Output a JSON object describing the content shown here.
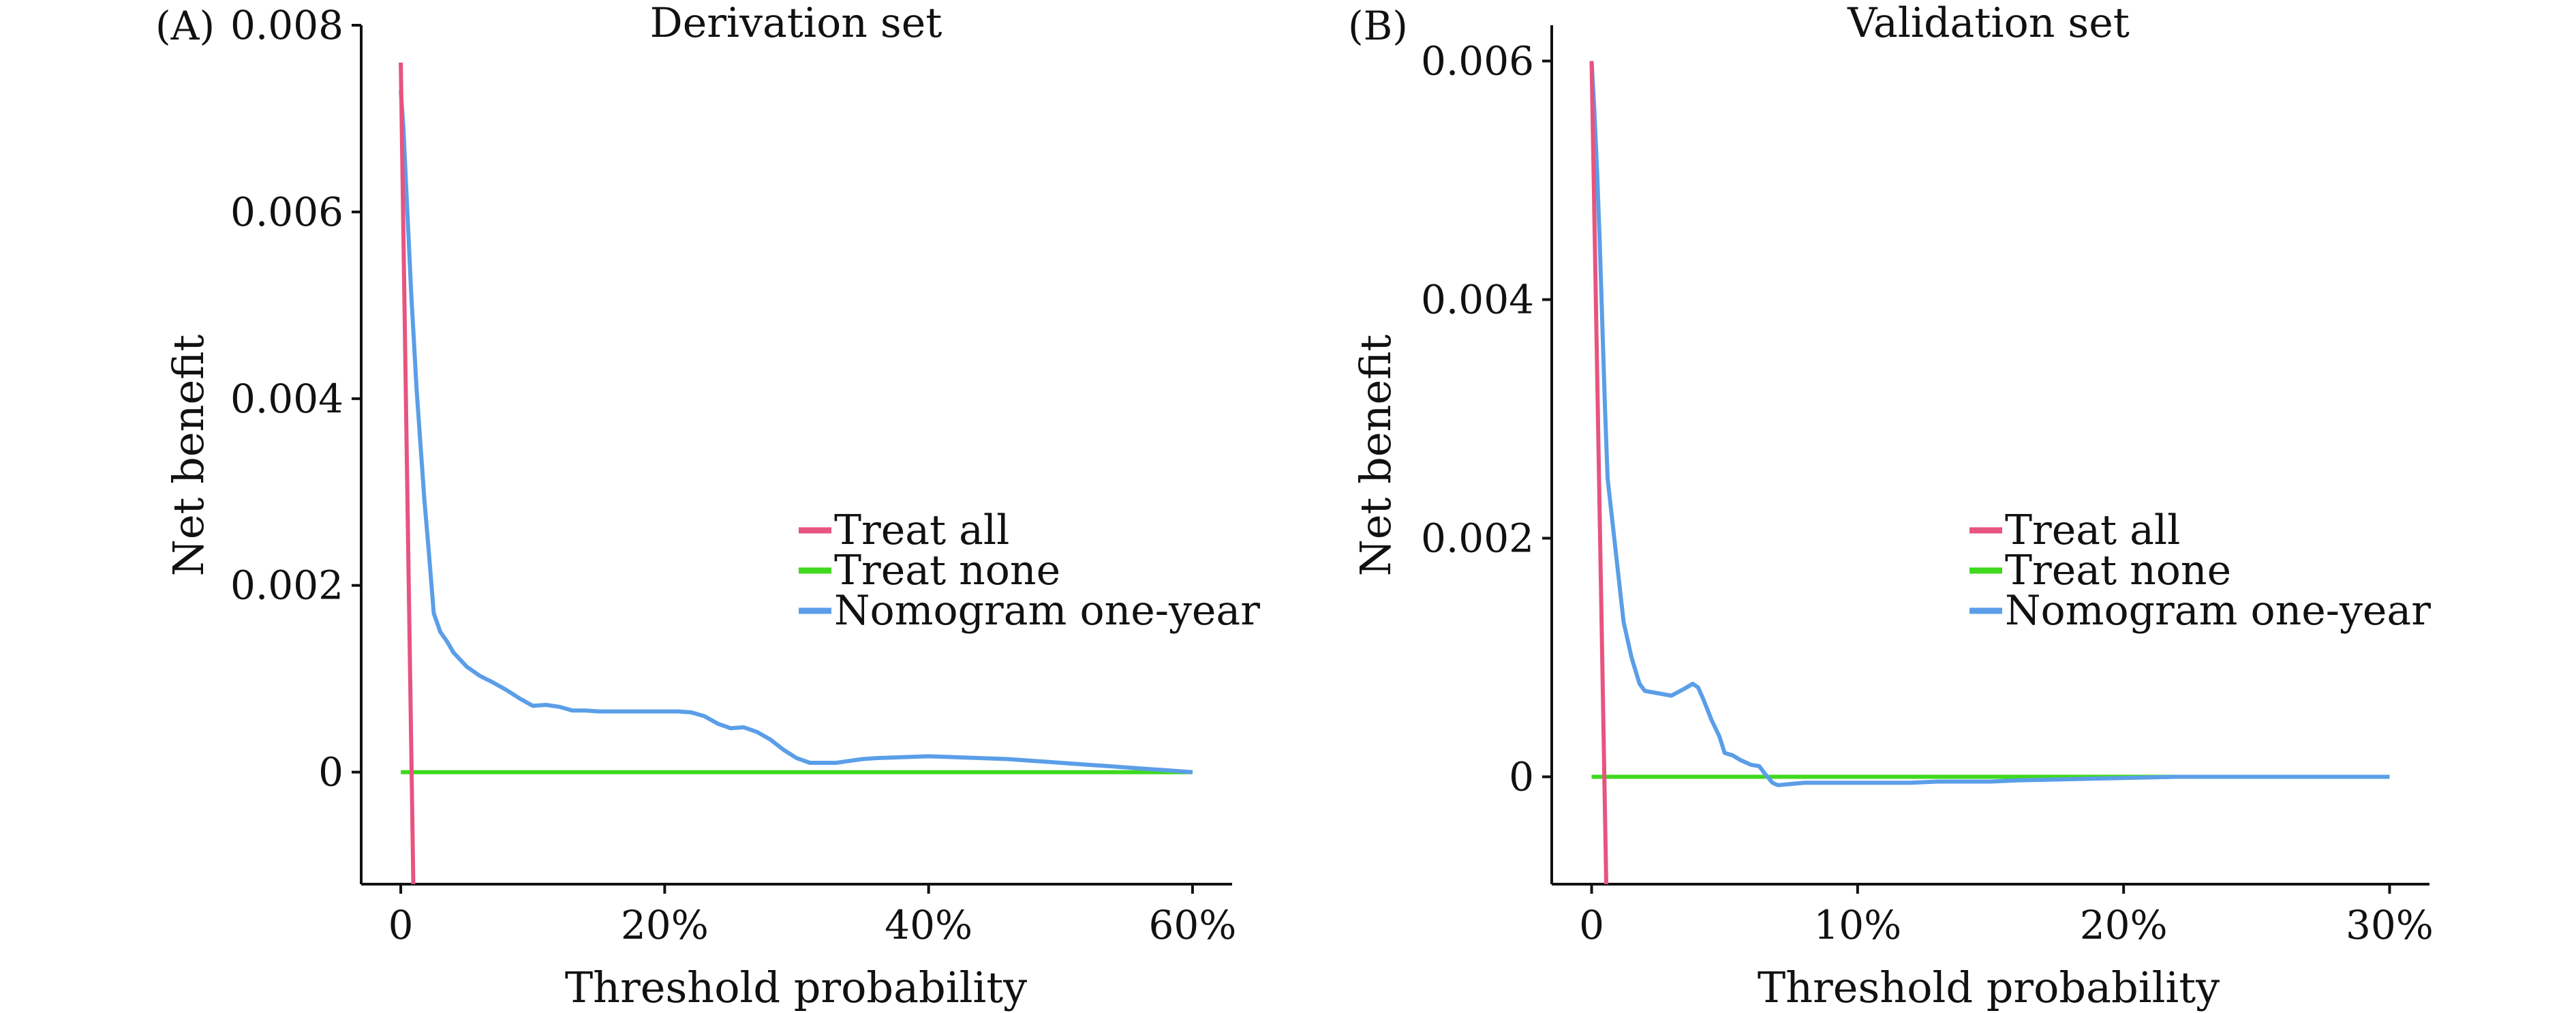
{
  "colors": {
    "treat_all": "#e75480",
    "treat_none": "#3fd91e",
    "nomogram": "#5b9ee8",
    "axis": "#111111"
  },
  "chart_data": [
    {
      "type": "line",
      "panel_label": "(A)",
      "title": "Derivation set",
      "xlabel": "Threshold probability",
      "ylabel": "Net benefit",
      "xlim": [
        -0.03,
        0.63
      ],
      "ylim": [
        -0.0012,
        0.008
      ],
      "x_ticks": [
        0,
        0.2,
        0.4,
        0.6
      ],
      "x_tick_labels": [
        "0",
        "20%",
        "40%",
        "60%"
      ],
      "y_ticks": [
        0,
        0.002,
        0.004,
        0.006,
        0.008
      ],
      "y_tick_labels": [
        "0",
        "0.002",
        "0.004",
        "0.006",
        "0.008"
      ],
      "grid": false,
      "legend": "center-right",
      "series": [
        {
          "name": "Treat all",
          "color_key": "treat_all",
          "x": [
            0.0,
            0.0095
          ],
          "y": [
            0.0076,
            -0.0012
          ]
        },
        {
          "name": "Treat none",
          "color_key": "treat_none",
          "x": [
            0.0,
            0.6
          ],
          "y": [
            0.0,
            0.0
          ]
        },
        {
          "name": "Nomogram one-year",
          "color_key": "nomogram",
          "x": [
            0.0,
            0.002,
            0.004,
            0.006,
            0.008,
            0.01,
            0.012,
            0.015,
            0.018,
            0.021,
            0.025,
            0.03,
            0.035,
            0.04,
            0.05,
            0.06,
            0.07,
            0.08,
            0.09,
            0.1,
            0.11,
            0.12,
            0.13,
            0.14,
            0.15,
            0.17,
            0.19,
            0.21,
            0.22,
            0.23,
            0.24,
            0.25,
            0.26,
            0.27,
            0.28,
            0.29,
            0.3,
            0.31,
            0.32,
            0.33,
            0.34,
            0.35,
            0.36,
            0.38,
            0.4,
            0.42,
            0.44,
            0.46,
            0.48,
            0.5,
            0.52,
            0.54,
            0.56,
            0.58,
            0.6
          ],
          "y": [
            0.0073,
            0.0069,
            0.0063,
            0.0057,
            0.0051,
            0.0046,
            0.0041,
            0.0035,
            0.0029,
            0.0024,
            0.0017,
            0.0015,
            0.0014,
            0.00128,
            0.00113,
            0.00103,
            0.00096,
            0.00088,
            0.00079,
            0.00071,
            0.00072,
            0.0007,
            0.00066,
            0.00066,
            0.00065,
            0.00065,
            0.00065,
            0.00065,
            0.00064,
            0.0006,
            0.00052,
            0.00047,
            0.00048,
            0.00043,
            0.00035,
            0.00024,
            0.00015,
            0.0001,
            0.0001,
            0.0001,
            0.00012,
            0.00014,
            0.00015,
            0.00016,
            0.00017,
            0.00016,
            0.00015,
            0.00014,
            0.00012,
            0.0001,
            8e-05,
            6e-05,
            4e-05,
            2e-05,
            0.0
          ]
        }
      ]
    },
    {
      "type": "line",
      "panel_label": "(B)",
      "title": "Validation set",
      "xlabel": "Threshold probability",
      "ylabel": "Net benefit",
      "xlim": [
        -0.015,
        0.315
      ],
      "ylim": [
        -0.0009,
        0.0063
      ],
      "x_ticks": [
        0,
        0.1,
        0.2,
        0.3
      ],
      "x_tick_labels": [
        "0",
        "10%",
        "20%",
        "30%"
      ],
      "y_ticks": [
        0,
        0.002,
        0.004,
        0.006
      ],
      "y_tick_labels": [
        "0",
        "0.002",
        "0.004",
        "0.006"
      ],
      "grid": false,
      "legend": "center-right",
      "series": [
        {
          "name": "Treat all",
          "color_key": "treat_all",
          "x": [
            0.0,
            0.0055
          ],
          "y": [
            0.006,
            -0.0009
          ]
        },
        {
          "name": "Treat none",
          "color_key": "treat_none",
          "x": [
            0.0,
            0.3
          ],
          "y": [
            0.0,
            0.0
          ]
        },
        {
          "name": "Nomogram one-year",
          "color_key": "nomogram",
          "x": [
            0.0,
            0.001,
            0.002,
            0.003,
            0.004,
            0.005,
            0.006,
            0.008,
            0.01,
            0.012,
            0.015,
            0.018,
            0.02,
            0.025,
            0.03,
            0.035,
            0.038,
            0.04,
            0.042,
            0.045,
            0.048,
            0.05,
            0.053,
            0.056,
            0.06,
            0.063,
            0.065,
            0.068,
            0.07,
            0.075,
            0.08,
            0.09,
            0.1,
            0.11,
            0.12,
            0.13,
            0.14,
            0.15,
            0.16,
            0.18,
            0.2,
            0.22,
            0.24,
            0.26,
            0.28,
            0.3
          ],
          "y": [
            0.006,
            0.0056,
            0.0051,
            0.0045,
            0.0038,
            0.0031,
            0.0025,
            0.0021,
            0.0017,
            0.0013,
            0.001,
            0.00078,
            0.00072,
            0.0007,
            0.00068,
            0.00074,
            0.00078,
            0.00075,
            0.00065,
            0.00048,
            0.00034,
            0.0002,
            0.00018,
            0.00014,
            0.0001,
            9e-05,
            3e-05,
            -5e-05,
            -7e-05,
            -6e-05,
            -5e-05,
            -5e-05,
            -5e-05,
            -5e-05,
            -5e-05,
            -4e-05,
            -4e-05,
            -4e-05,
            -3e-05,
            -2e-05,
            -1e-05,
            0.0,
            0.0,
            0.0,
            0.0,
            0.0
          ]
        }
      ]
    }
  ]
}
